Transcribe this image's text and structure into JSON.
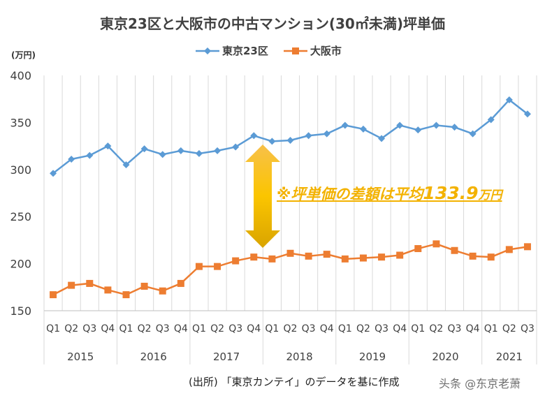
{
  "chart_data": {
    "type": "line",
    "title": "東京23区と大阪市の中古マンション(30㎡未満)坪単価",
    "ylabel": "(万円)",
    "xlabel": "",
    "ylim": [
      150,
      400
    ],
    "yticks": [
      150,
      200,
      250,
      300,
      350,
      400
    ],
    "grid": "vertical",
    "legend": "top",
    "categories": [
      "Q1",
      "Q2",
      "Q3",
      "Q4",
      "Q1",
      "Q2",
      "Q3",
      "Q4",
      "Q1",
      "Q2",
      "Q3",
      "Q4",
      "Q1",
      "Q2",
      "Q3",
      "Q4",
      "Q1",
      "Q2",
      "Q3",
      "Q4",
      "Q1",
      "Q2",
      "Q3",
      "Q4",
      "Q1",
      "Q2",
      "Q3"
    ],
    "years": [
      {
        "label": "2015",
        "quarters": 4
      },
      {
        "label": "2016",
        "quarters": 4
      },
      {
        "label": "2017",
        "quarters": 4
      },
      {
        "label": "2018",
        "quarters": 4
      },
      {
        "label": "2019",
        "quarters": 4
      },
      {
        "label": "2020",
        "quarters": 4
      },
      {
        "label": "2021",
        "quarters": 3
      }
    ],
    "series": [
      {
        "name": "東京23区",
        "color": "#5b9bd5",
        "marker": "diamond",
        "values": [
          296,
          311,
          315,
          325,
          305,
          322,
          316,
          320,
          317,
          320,
          324,
          336,
          330,
          331,
          336,
          338,
          347,
          343,
          333,
          347,
          342,
          347,
          345,
          338,
          353,
          374,
          359
        ]
      },
      {
        "name": "大阪市",
        "color": "#ed7d31",
        "marker": "square",
        "values": [
          167,
          177,
          179,
          172,
          167,
          176,
          171,
          179,
          197,
          197,
          203,
          207,
          205,
          211,
          208,
          210,
          205,
          206,
          207,
          209,
          216,
          221,
          214,
          208,
          207,
          215,
          218
        ]
      }
    ],
    "annotation": {
      "prefix": "※坪単価の差額は平均",
      "value": "133.9",
      "unit": "万円",
      "color": "#f3b200"
    }
  },
  "footer": {
    "source": "(出所) 「東京カンテイ」のデータを基に作成",
    "watermark": "头条 @东京老萧"
  }
}
